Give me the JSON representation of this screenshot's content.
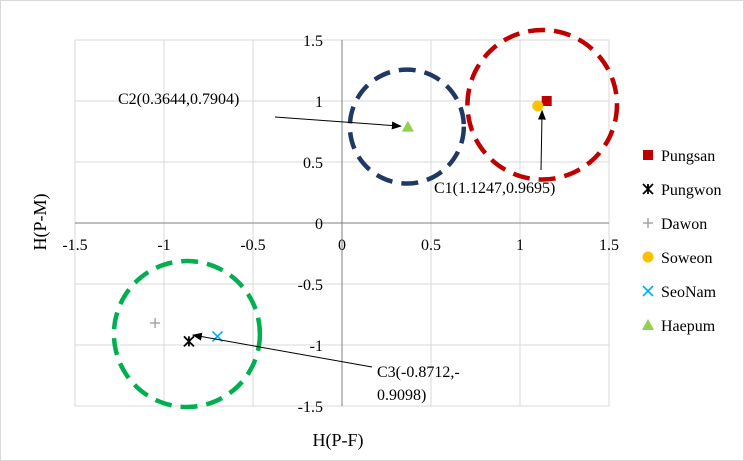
{
  "chart_data": {
    "type": "scatter",
    "title": "",
    "xlabel": "H(P-F)",
    "ylabel": "H(P-M)",
    "xlim": [
      -1.5,
      1.5
    ],
    "ylim": [
      -1.5,
      1.5
    ],
    "x_ticks": [
      "-1.5",
      "-1",
      "-0.5",
      "0",
      "0.5",
      "1",
      "1.5"
    ],
    "y_ticks": [
      "1.5",
      "1",
      "0.5",
      "0",
      "-0.5",
      "-1",
      "-1.5"
    ],
    "grid": true,
    "legend_position": "right",
    "series": [
      {
        "name": "Pungsan",
        "marker": "square",
        "color": "#c00000",
        "points": [
          [
            1.15,
            1.0
          ]
        ]
      },
      {
        "name": "Pungwon",
        "marker": "star",
        "color": "#000000",
        "points": [
          [
            -0.86,
            -0.97
          ]
        ]
      },
      {
        "name": "Dawon",
        "marker": "plus",
        "color": "#a6a6a6",
        "points": [
          [
            -1.05,
            -0.82
          ]
        ]
      },
      {
        "name": "Soweon",
        "marker": "circle",
        "color": "#ffc000",
        "points": [
          [
            1.1,
            0.96
          ]
        ]
      },
      {
        "name": "SeoNam",
        "marker": "x",
        "color": "#00b0f0",
        "points": [
          [
            -0.7,
            -0.93
          ]
        ]
      },
      {
        "name": "Haepum",
        "marker": "triangle",
        "color": "#92d050",
        "points": [
          [
            0.37,
            0.79
          ]
        ]
      }
    ],
    "clusters": [
      {
        "name": "C1",
        "center": [
          1.1247,
          0.9695
        ],
        "color": "#c00000",
        "radius": 0.42
      },
      {
        "name": "C2",
        "center": [
          0.3644,
          0.7904
        ],
        "color": "#1f3864",
        "radius": 0.32
      },
      {
        "name": "C3",
        "center": [
          -0.8712,
          -0.9098
        ],
        "color": "#00b050",
        "radius": 0.41
      }
    ],
    "annotations": [
      {
        "id": "C1",
        "lines": [
          "C1(1.1247,0.9695)"
        ],
        "target": [
          1.1247,
          0.9695
        ]
      },
      {
        "id": "C2",
        "lines": [
          "C2(0.3644,0.7904)"
        ],
        "target": [
          0.3644,
          0.7904
        ]
      },
      {
        "id": "C3",
        "lines": [
          "C3(-0.8712,-",
          "0.9098)"
        ],
        "target": [
          -0.8712,
          -0.9098
        ]
      }
    ]
  }
}
